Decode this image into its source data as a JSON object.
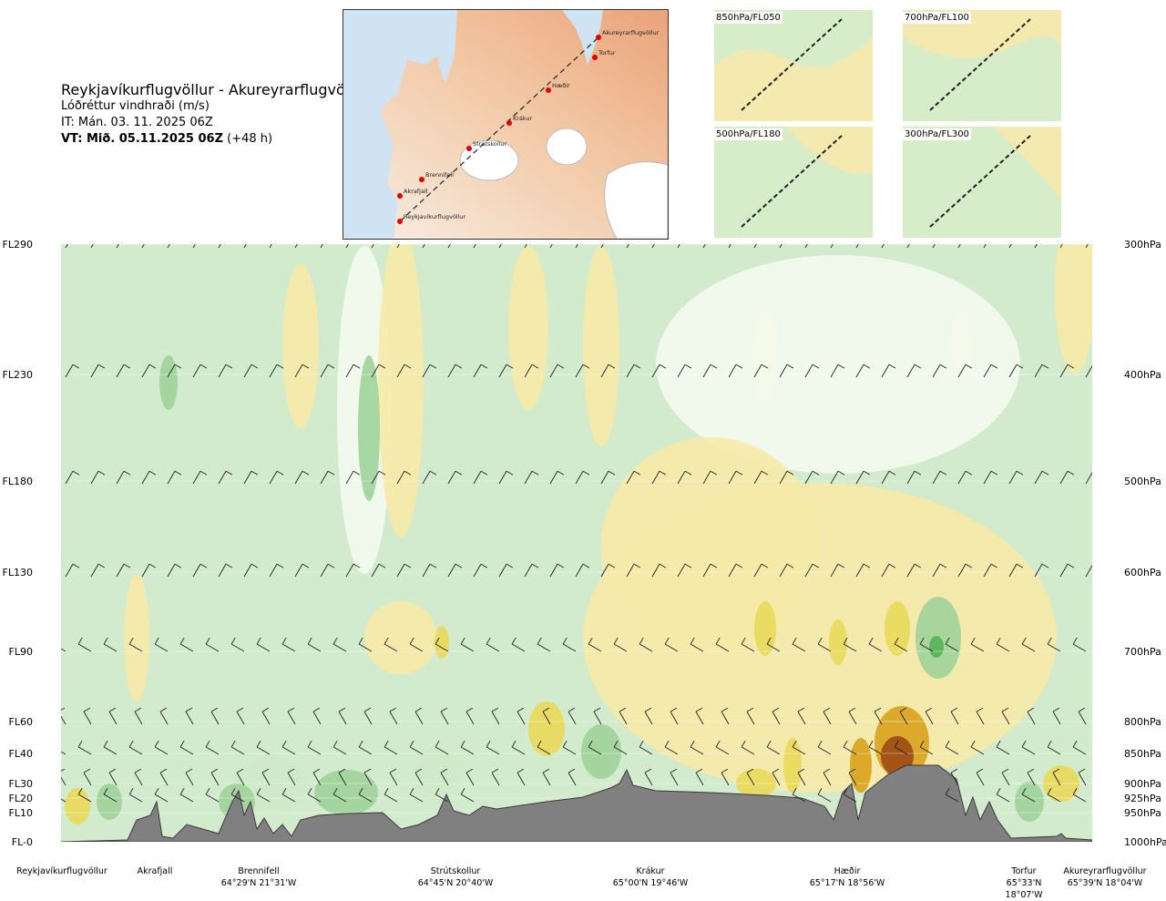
{
  "title": {
    "route": "Reykjavíkurflugvöllur - Akureyrarflugvöllur",
    "quantity": "Lóðréttur vindhraði (m/s)",
    "it": "IT: Mán. 03. 11. 2025 06Z",
    "vt_bold": "VT: Mið. 05.11.2025 06Z",
    "vt_lead": " (+48 h)"
  },
  "map": {
    "labels": [
      "Akureyrarflugvöllur",
      "Torfur",
      "Hæðir",
      "Krákur",
      "Strútskollur",
      "Brennifell",
      "Akrafjall",
      "Reykjavíkurflugvöllur"
    ]
  },
  "mini_maps": [
    {
      "label": "850hPa/FL050"
    },
    {
      "label": "700hPa/FL100"
    },
    {
      "label": "500hPa/FL180"
    },
    {
      "label": "300hPa/FL300"
    }
  ],
  "chart_data": {
    "type": "heatmap",
    "title": "Lóðréttur vindhraði (m/s)",
    "x_stations": [
      {
        "name": "Reykjavíkurflugvöllur",
        "coord": ""
      },
      {
        "name": "Akrafjall",
        "coord": ""
      },
      {
        "name": "Brennifell",
        "coord": "64°29'N 21°31'W"
      },
      {
        "name": "Strútskollur",
        "coord": "64°45'N 20°40'W"
      },
      {
        "name": "Krákur",
        "coord": "65°00'N 19°46'W"
      },
      {
        "name": "Hæðir",
        "coord": "65°17'N 18°56'W"
      },
      {
        "name": "Torfur",
        "coord": "65°33'N 18°07'W"
      },
      {
        "name": "Akureyrarflugvöllur",
        "coord": "65°39'N 18°04'W"
      }
    ],
    "y_left_labels": [
      "FL290",
      "FL230",
      "FL180",
      "FL130",
      "FL90",
      "FL60",
      "FL40",
      "FL30",
      "FL20",
      "FL10",
      "FL-0"
    ],
    "y_right_labels": [
      "300hPa",
      "400hPa",
      "500hPa",
      "600hPa",
      "700hPa",
      "800hPa",
      "850hPa",
      "900hPa",
      "925hPa",
      "950hPa",
      "1000hPa"
    ],
    "colors": {
      "downward_weak": "#cfe9c9",
      "downward_mid": "#9fd39a",
      "downward_strong": "#58b25a",
      "neutral": "#f4fbf0",
      "upward_weak": "#f6eaa8",
      "upward_mid": "#e9d95a",
      "upward_strong": "#d9a21c",
      "upward_max": "#9c4a14",
      "terrain": "#808080"
    }
  }
}
